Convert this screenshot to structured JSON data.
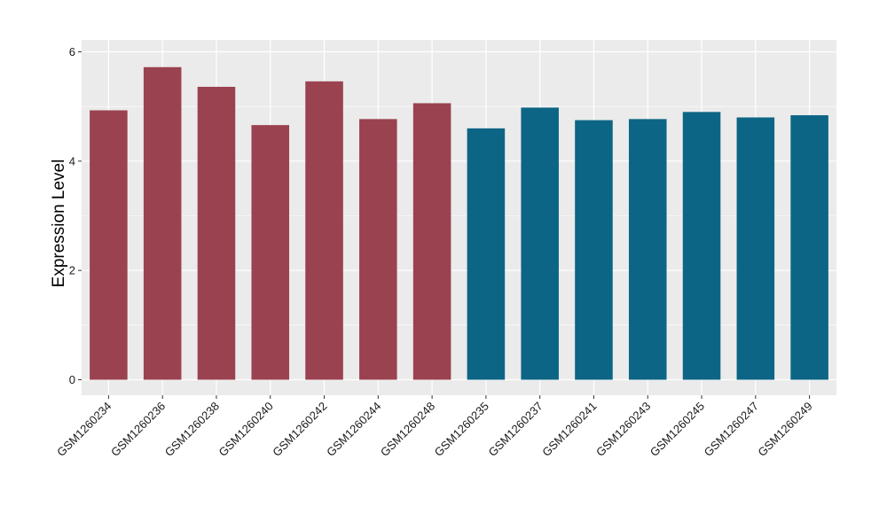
{
  "chart_data": {
    "type": "bar",
    "title": "",
    "xlabel": "",
    "ylabel": "Expression Level",
    "ylim": [
      0,
      6
    ],
    "yticks": [
      0,
      2,
      4,
      6
    ],
    "grid": true,
    "legend": "none",
    "categories": [
      "GSM1260234",
      "GSM1260236",
      "GSM1260238",
      "GSM1260240",
      "GSM1260242",
      "GSM1260244",
      "GSM1260248",
      "GSM1260235",
      "GSM1260237",
      "GSM1260241",
      "GSM1260243",
      "GSM1260245",
      "GSM1260247",
      "GSM1260249"
    ],
    "values": [
      4.93,
      5.72,
      5.36,
      4.66,
      5.46,
      4.77,
      5.06,
      4.6,
      4.98,
      4.75,
      4.77,
      4.9,
      4.8,
      4.84
    ],
    "groups": [
      0,
      0,
      0,
      0,
      0,
      0,
      0,
      1,
      1,
      1,
      1,
      1,
      1,
      1
    ],
    "colors": {
      "group_a": "#9b4250",
      "group_b": "#0d6585",
      "panel_background": "#ebebeb",
      "gridline": "#ffffff"
    }
  }
}
